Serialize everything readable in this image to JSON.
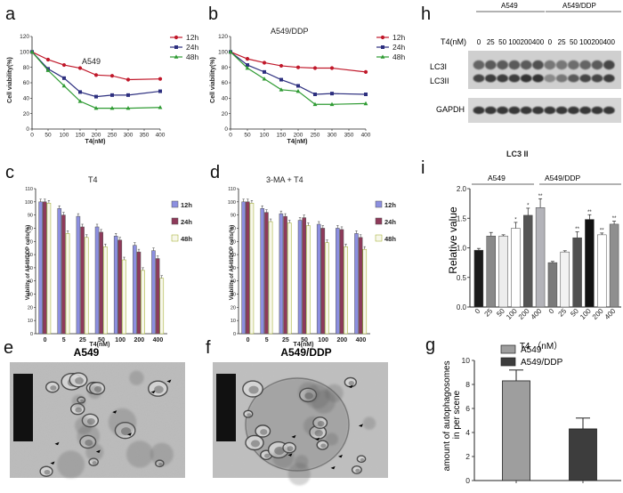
{
  "panel_labels": [
    "a",
    "b",
    "c",
    "d",
    "e",
    "f",
    "g",
    "h",
    "i"
  ],
  "colors": {
    "red": "#c0182a",
    "navy": "#2d2f7f",
    "green": "#2f9b33",
    "bar_blue": "#8c8fe0",
    "bar_purple": "#8e3a5a",
    "bar_white": "#f7f7ea",
    "bar_outline": "#9aa81f",
    "g_a549": "#9e9e9e",
    "g_ddp": "#3d3d3d"
  },
  "chart_data": [
    {
      "panel": "a",
      "type": "line",
      "title": "A549",
      "xlabel": "T4(nM)",
      "ylabel": "Cell viability(%)",
      "x": [
        0,
        50,
        100,
        150,
        200,
        250,
        300,
        400
      ],
      "xticks": [
        "0",
        "50",
        "100",
        "150",
        "200",
        "250",
        "300",
        "350",
        "400"
      ],
      "yticks": [
        "0",
        "20",
        "40",
        "60",
        "80",
        "100",
        "120"
      ],
      "xlim": [
        0,
        400
      ],
      "ylim": [
        0,
        120
      ],
      "series": [
        {
          "name": "12h",
          "marker": "circle",
          "values": [
            100,
            90,
            83,
            79,
            70,
            69,
            64,
            65
          ]
        },
        {
          "name": "24h",
          "marker": "square",
          "values": [
            100,
            78,
            66,
            48,
            42,
            44,
            44,
            49
          ]
        },
        {
          "name": "48h",
          "marker": "triangle",
          "values": [
            100,
            76,
            56,
            36,
            27,
            27,
            27,
            28
          ]
        }
      ]
    },
    {
      "panel": "b",
      "type": "line",
      "title": "A549/DDP",
      "xlabel": "T4(nM)",
      "ylabel": "Cell viability(%)",
      "x": [
        0,
        50,
        100,
        150,
        200,
        250,
        300,
        400
      ],
      "xticks": [
        "0",
        "50",
        "100",
        "150",
        "200",
        "250",
        "300",
        "350",
        "400"
      ],
      "yticks": [
        "0",
        "20",
        "40",
        "60",
        "80",
        "100",
        "120"
      ],
      "xlim": [
        0,
        400
      ],
      "ylim": [
        0,
        120
      ],
      "series": [
        {
          "name": "12h",
          "marker": "circle",
          "values": [
            100,
            91,
            86,
            82,
            80,
            79,
            79,
            74
          ]
        },
        {
          "name": "24h",
          "marker": "square",
          "values": [
            100,
            83,
            74,
            64,
            56,
            45,
            46,
            45
          ]
        },
        {
          "name": "48h",
          "marker": "triangle",
          "values": [
            100,
            79,
            65,
            51,
            49,
            32,
            32,
            33
          ]
        }
      ]
    },
    {
      "panel": "c",
      "type": "bar",
      "title": "T4",
      "xlabel": "T4(nM)",
      "ylabel": "Viability of A549/DDP cells(%)",
      "categories": [
        "0",
        "5",
        "25",
        "50",
        "100",
        "200",
        "400"
      ],
      "yticks": [
        "0",
        "10",
        "20",
        "30",
        "40",
        "50",
        "60",
        "70",
        "80",
        "90",
        "100",
        "110"
      ],
      "ylim": [
        0,
        110
      ],
      "series": [
        {
          "name": "12h",
          "values": [
            100,
            95,
            89,
            81,
            74,
            67,
            63
          ],
          "sig": [
            "",
            "",
            "",
            "",
            "",
            "",
            ""
          ]
        },
        {
          "name": "24h",
          "values": [
            100,
            90,
            81,
            77,
            71,
            62,
            57
          ],
          "sig": [
            "",
            "",
            "",
            "",
            "",
            "",
            ""
          ]
        },
        {
          "name": "48h",
          "values": [
            99,
            76,
            73,
            66,
            56,
            48,
            42
          ],
          "sig": [
            "",
            "",
            "",
            "",
            "",
            "",
            ""
          ]
        }
      ]
    },
    {
      "panel": "d",
      "type": "bar",
      "title": "3-MA + T4",
      "xlabel": "T4(nM)",
      "ylabel": "Viability of A549/DDP cells(%)",
      "categories": [
        "0",
        "5",
        "25",
        "50",
        "100",
        "200",
        "400"
      ],
      "yticks": [
        "0",
        "10",
        "20",
        "30",
        "40",
        "50",
        "60",
        "70",
        "80",
        "90",
        "100",
        "110"
      ],
      "ylim": [
        0,
        110
      ],
      "series": [
        {
          "name": "12h",
          "values": [
            100,
            95,
            91,
            86,
            83,
            80,
            76
          ]
        },
        {
          "name": "24h",
          "values": [
            100,
            92,
            89,
            88,
            80,
            79,
            73
          ]
        },
        {
          "name": "48h",
          "values": [
            99,
            85,
            84,
            82,
            69,
            66,
            64
          ]
        }
      ]
    },
    {
      "panel": "g",
      "type": "bar",
      "title": "",
      "xlabel": "",
      "ylabel": "amount of autophagosomes in per scene",
      "categories": [
        "A549",
        "A549/DDP"
      ],
      "values": [
        8.3,
        4.3
      ],
      "errors": [
        0.9,
        0.9
      ],
      "yticks": [
        "0",
        "2",
        "4",
        "6",
        "8",
        "10"
      ],
      "ylim": [
        0,
        10
      ]
    },
    {
      "panel": "i",
      "type": "bar",
      "title": "LC3 II",
      "xlabel": "T4 （nM）",
      "ylabel": "Relative value",
      "groups": [
        "A549",
        "A549/DDP"
      ],
      "categories": [
        "0",
        "25",
        "50",
        "100",
        "200",
        "400",
        "0",
        "25",
        "50",
        "100",
        "200",
        "400"
      ],
      "values": [
        0.96,
        1.2,
        1.2,
        1.33,
        1.55,
        1.68,
        0.75,
        0.93,
        1.17,
        1.48,
        1.22,
        1.4
      ],
      "errors": [
        0.03,
        0.06,
        0.02,
        0.1,
        0.12,
        0.15,
        0.02,
        0.02,
        0.1,
        0.08,
        0.03,
        0.05
      ],
      "sig": [
        "",
        "",
        "",
        "*",
        "*",
        "**",
        "",
        "",
        "**",
        "**",
        "**",
        "**"
      ],
      "yticks": [
        "0.0",
        "0.5",
        "1.0",
        "1.5",
        "2.0"
      ],
      "ylim": [
        0,
        2.0
      ]
    }
  ],
  "blot": {
    "panel": "h",
    "groups": [
      "A549",
      "A549/DDP"
    ],
    "header": "T4(nM)",
    "lanes": [
      "0",
      "25",
      "50",
      "100",
      "200",
      "400",
      "0",
      "25",
      "50",
      "100",
      "200",
      "400"
    ],
    "rows": [
      "LC3I",
      "LC3II",
      "GAPDH"
    ]
  },
  "em": [
    {
      "panel": "e",
      "title": "A549"
    },
    {
      "panel": "f",
      "title": "A549/DDP"
    }
  ]
}
